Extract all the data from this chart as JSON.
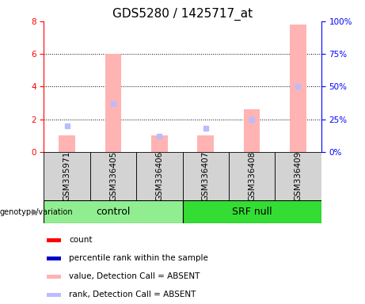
{
  "title": "GDS5280 / 1425717_at",
  "samples": [
    "GSM335971",
    "GSM336405",
    "GSM336406",
    "GSM336407",
    "GSM336408",
    "GSM336409"
  ],
  "groups": [
    {
      "label": "control",
      "count": 3,
      "color": "#90EE90"
    },
    {
      "label": "SRF null",
      "count": 3,
      "color": "#33DD33"
    }
  ],
  "pink_bar_values": [
    1.0,
    6.0,
    1.0,
    1.0,
    2.6,
    7.8
  ],
  "blue_square_values_pct": [
    20.0,
    37.0,
    12.0,
    18.0,
    25.0,
    50.0
  ],
  "ylim_left": [
    0,
    8
  ],
  "ylim_right": [
    0,
    100
  ],
  "yticks_left": [
    0,
    2,
    4,
    6,
    8
  ],
  "yticks_right": [
    0,
    25,
    50,
    75,
    100
  ],
  "ytick_labels_right": [
    "0%",
    "25%",
    "50%",
    "75%",
    "100%"
  ],
  "bar_color_absent": "#FFB3B3",
  "rank_color_absent": "#BBBBFF",
  "grid_dotted_values": [
    2,
    4,
    6
  ],
  "legend_items": [
    {
      "label": "count",
      "color": "#FF0000"
    },
    {
      "label": "percentile rank within the sample",
      "color": "#0000CC"
    },
    {
      "label": "value, Detection Call = ABSENT",
      "color": "#FFB3B3"
    },
    {
      "label": "rank, Detection Call = ABSENT",
      "color": "#BBBBFF"
    }
  ],
  "title_fontsize": 11,
  "tick_fontsize": 7.5,
  "legend_fontsize": 7.5
}
